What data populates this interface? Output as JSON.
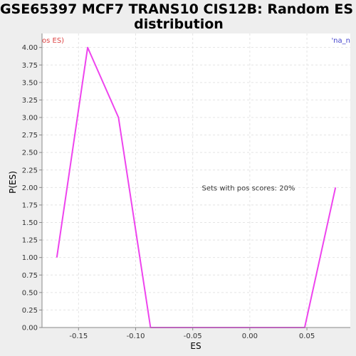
{
  "chart_data": {
    "type": "line",
    "title_line1": "GSE65397 MCF7 TRANS10 CIS12B: Random ES",
    "title_line2": "distribution",
    "xlabel": "ES",
    "ylabel": "P(ES)",
    "xlim": [
      -0.182,
      0.088
    ],
    "ylim": [
      0.0,
      4.2
    ],
    "x_ticks": [
      -0.15,
      -0.1,
      -0.05,
      0.0,
      0.05
    ],
    "x_tick_labels": [
      "-0.15",
      "-0.10",
      "-0.05",
      "0.00",
      "0.05"
    ],
    "y_ticks": [
      0.0,
      0.25,
      0.5,
      0.75,
      1.0,
      1.25,
      1.5,
      1.75,
      2.0,
      2.25,
      2.5,
      2.75,
      3.0,
      3.25,
      3.5,
      3.75,
      4.0
    ],
    "y_tick_labels": [
      "0.00",
      "0.25",
      "0.50",
      "0.75",
      "1.00",
      "1.25",
      "1.50",
      "1.75",
      "2.00",
      "2.25",
      "2.50",
      "2.75",
      "3.00",
      "3.25",
      "3.50",
      "3.75",
      "4.00"
    ],
    "grid": true,
    "series": [
      {
        "x": [
          -0.169,
          -0.142,
          -0.115,
          -0.087,
          -0.06,
          -0.033,
          -0.006,
          0.021,
          0.048,
          0.075
        ],
        "y": [
          1.0,
          4.0,
          3.0,
          0.0,
          0.0,
          0.0,
          0.0,
          0.0,
          0.0,
          2.0
        ],
        "color": "#ee44ee"
      }
    ],
    "annotation": "Sets with pos scores: 20%",
    "annotation_pos": {
      "x": -0.042,
      "y": 2.0
    },
    "legend_left_text": "os ES)",
    "legend_left_color": "#dd4444",
    "legend_right_text": "'na_n",
    "legend_right_color": "#4444cc"
  }
}
